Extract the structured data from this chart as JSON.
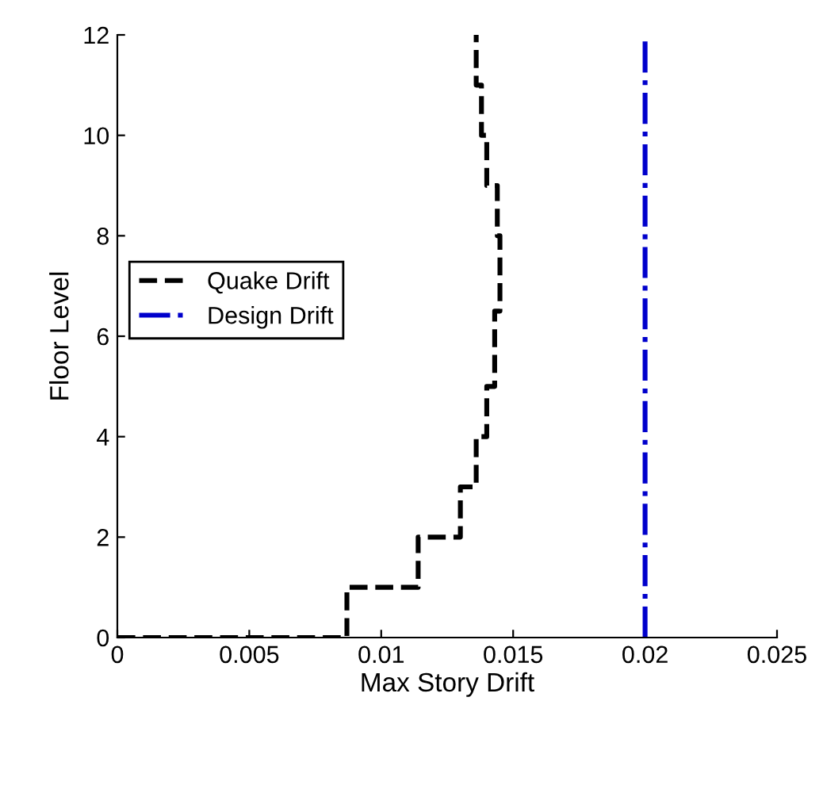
{
  "chart_data": {
    "type": "line",
    "xlabel": "Max Story Drift",
    "ylabel": "Floor Level",
    "xlim": [
      0,
      0.025
    ],
    "xticks": [
      0,
      0.005,
      0.01,
      0.015,
      0.02,
      0.025
    ],
    "ylim": [
      0,
      12
    ],
    "yticks": [
      0,
      2,
      4,
      6,
      8,
      10,
      12
    ],
    "grid": false,
    "legend": "left",
    "series": [
      {
        "name": "Quake Drift",
        "color": "#000000",
        "line_style": "dashed",
        "x": [
          0,
          0.0087,
          0.0087,
          0.0114,
          0.0114,
          0.013,
          0.013,
          0.0136,
          0.0136,
          0.014,
          0.014,
          0.0143,
          0.0143,
          0.0145,
          0.0145,
          0.0144,
          0.0144,
          0.014,
          0.014,
          0.0138,
          0.0138,
          0.0136,
          0.0136
        ],
        "values": [
          0,
          0,
          1,
          1,
          2,
          2,
          3,
          3,
          4,
          4,
          5,
          5,
          6.5,
          6.5,
          8,
          8,
          9,
          9,
          10,
          10,
          11,
          11,
          12
        ]
      },
      {
        "name": "Design Drift",
        "color": "#0000cc",
        "line_style": "dashdot",
        "x": [
          0.02,
          0.02
        ],
        "values": [
          0,
          12
        ]
      }
    ]
  }
}
